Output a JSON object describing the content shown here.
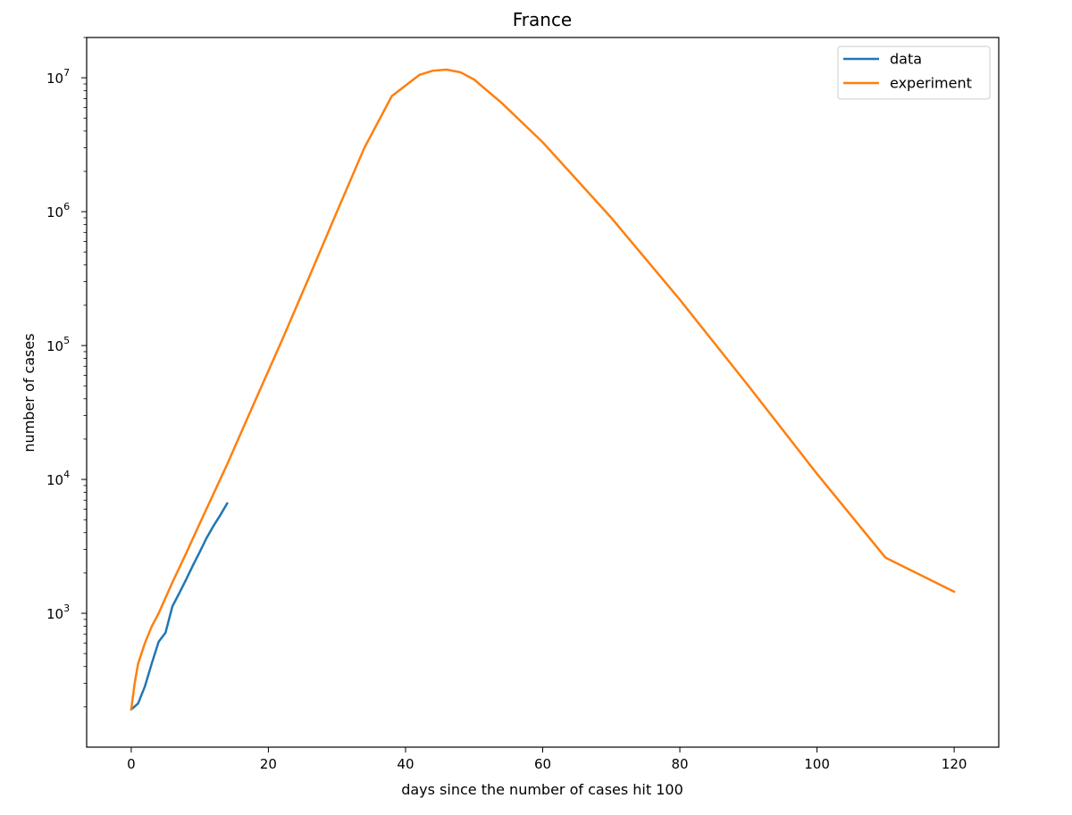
{
  "chart_data": {
    "type": "line",
    "title": "France",
    "xlabel": "days since the number of cases hit 100",
    "ylabel": "number of cases",
    "yscale": "log",
    "xlim": [
      -6.5,
      126.5
    ],
    "ylim": [
      100,
      20000000
    ],
    "xticks": [
      0,
      20,
      40,
      60,
      80,
      100,
      120
    ],
    "yticks": [
      {
        "value": 1000,
        "base": "10",
        "exp": "3"
      },
      {
        "value": 10000,
        "base": "10",
        "exp": "4"
      },
      {
        "value": 100000,
        "base": "10",
        "exp": "5"
      },
      {
        "value": 1000000,
        "base": "10",
        "exp": "6"
      },
      {
        "value": 10000000,
        "base": "10",
        "exp": "7"
      }
    ],
    "grid": false,
    "legend": "top-right",
    "series": [
      {
        "name": "data",
        "color": "#1f77b4",
        "x": [
          0,
          1,
          2,
          3,
          4,
          5,
          6,
          7,
          8,
          9,
          10,
          11,
          12,
          13,
          14
        ],
        "y": [
          191,
          212,
          285,
          423,
          613,
          716,
          1126,
          1412,
          1784,
          2281,
          2876,
          3661,
          4499,
          5423,
          6633
        ]
      },
      {
        "name": "experiment",
        "color": "#ff7f0e",
        "x": [
          0,
          0.5,
          1,
          2,
          3,
          4,
          6,
          8,
          10,
          14,
          18,
          22,
          26,
          30,
          34,
          38,
          42,
          44,
          46,
          48,
          50,
          54,
          60,
          70,
          80,
          90,
          100,
          110,
          120
        ],
        "y": [
          191,
          300,
          420,
          600,
          800,
          1000,
          1700,
          2800,
          4700,
          13000,
          38000,
          110000,
          330000,
          1000000,
          3000000,
          7300000,
          10500000,
          11300000,
          11500000,
          11000000,
          9700000,
          6500000,
          3300000,
          900000,
          220000,
          50000,
          11000,
          2600,
          1450
        ]
      }
    ]
  }
}
